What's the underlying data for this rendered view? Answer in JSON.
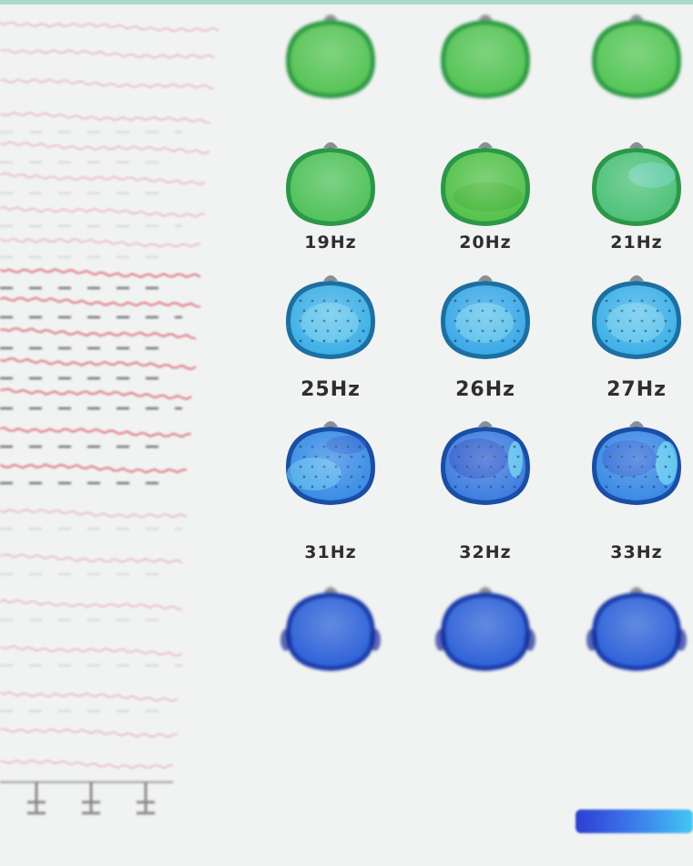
{
  "rows": [
    {
      "labels": [
        "",
        "",
        ""
      ],
      "blurred": true,
      "fill": [
        "#57c456",
        "#55c455",
        "#56c657"
      ],
      "rim": "#2f9a46"
    },
    {
      "labels": [
        "19Hz",
        "20Hz",
        "21Hz"
      ],
      "blurred": false,
      "fill": [
        "#52c25c",
        "#55c24c",
        "#4fc27a"
      ],
      "rim": "#2c9748"
    },
    {
      "labels": [
        "25Hz",
        "26Hz",
        "27Hz"
      ],
      "blurred": false,
      "fill": [
        "#3fb0e6",
        "#3caae8",
        "#3fb1e8"
      ],
      "rim": "#1c6fa0"
    },
    {
      "labels": [
        "31Hz",
        "32Hz",
        "33Hz"
      ],
      "blurred": false,
      "fill": [
        "#3a8de6",
        "#3f7ee0",
        "#3b8ae6"
      ],
      "rim": "#1a4ea5"
    },
    {
      "labels": [
        "",
        "",
        ""
      ],
      "blurred": true,
      "fill": [
        "#2f63d8",
        "#2f63d8",
        "#2f63d8"
      ],
      "rim": "#1a3aa8"
    }
  ],
  "colorbar": {
    "min_label": ""
  },
  "colors": {
    "eeg_trace": "#d64a5a",
    "background": "#f1f3f2"
  }
}
